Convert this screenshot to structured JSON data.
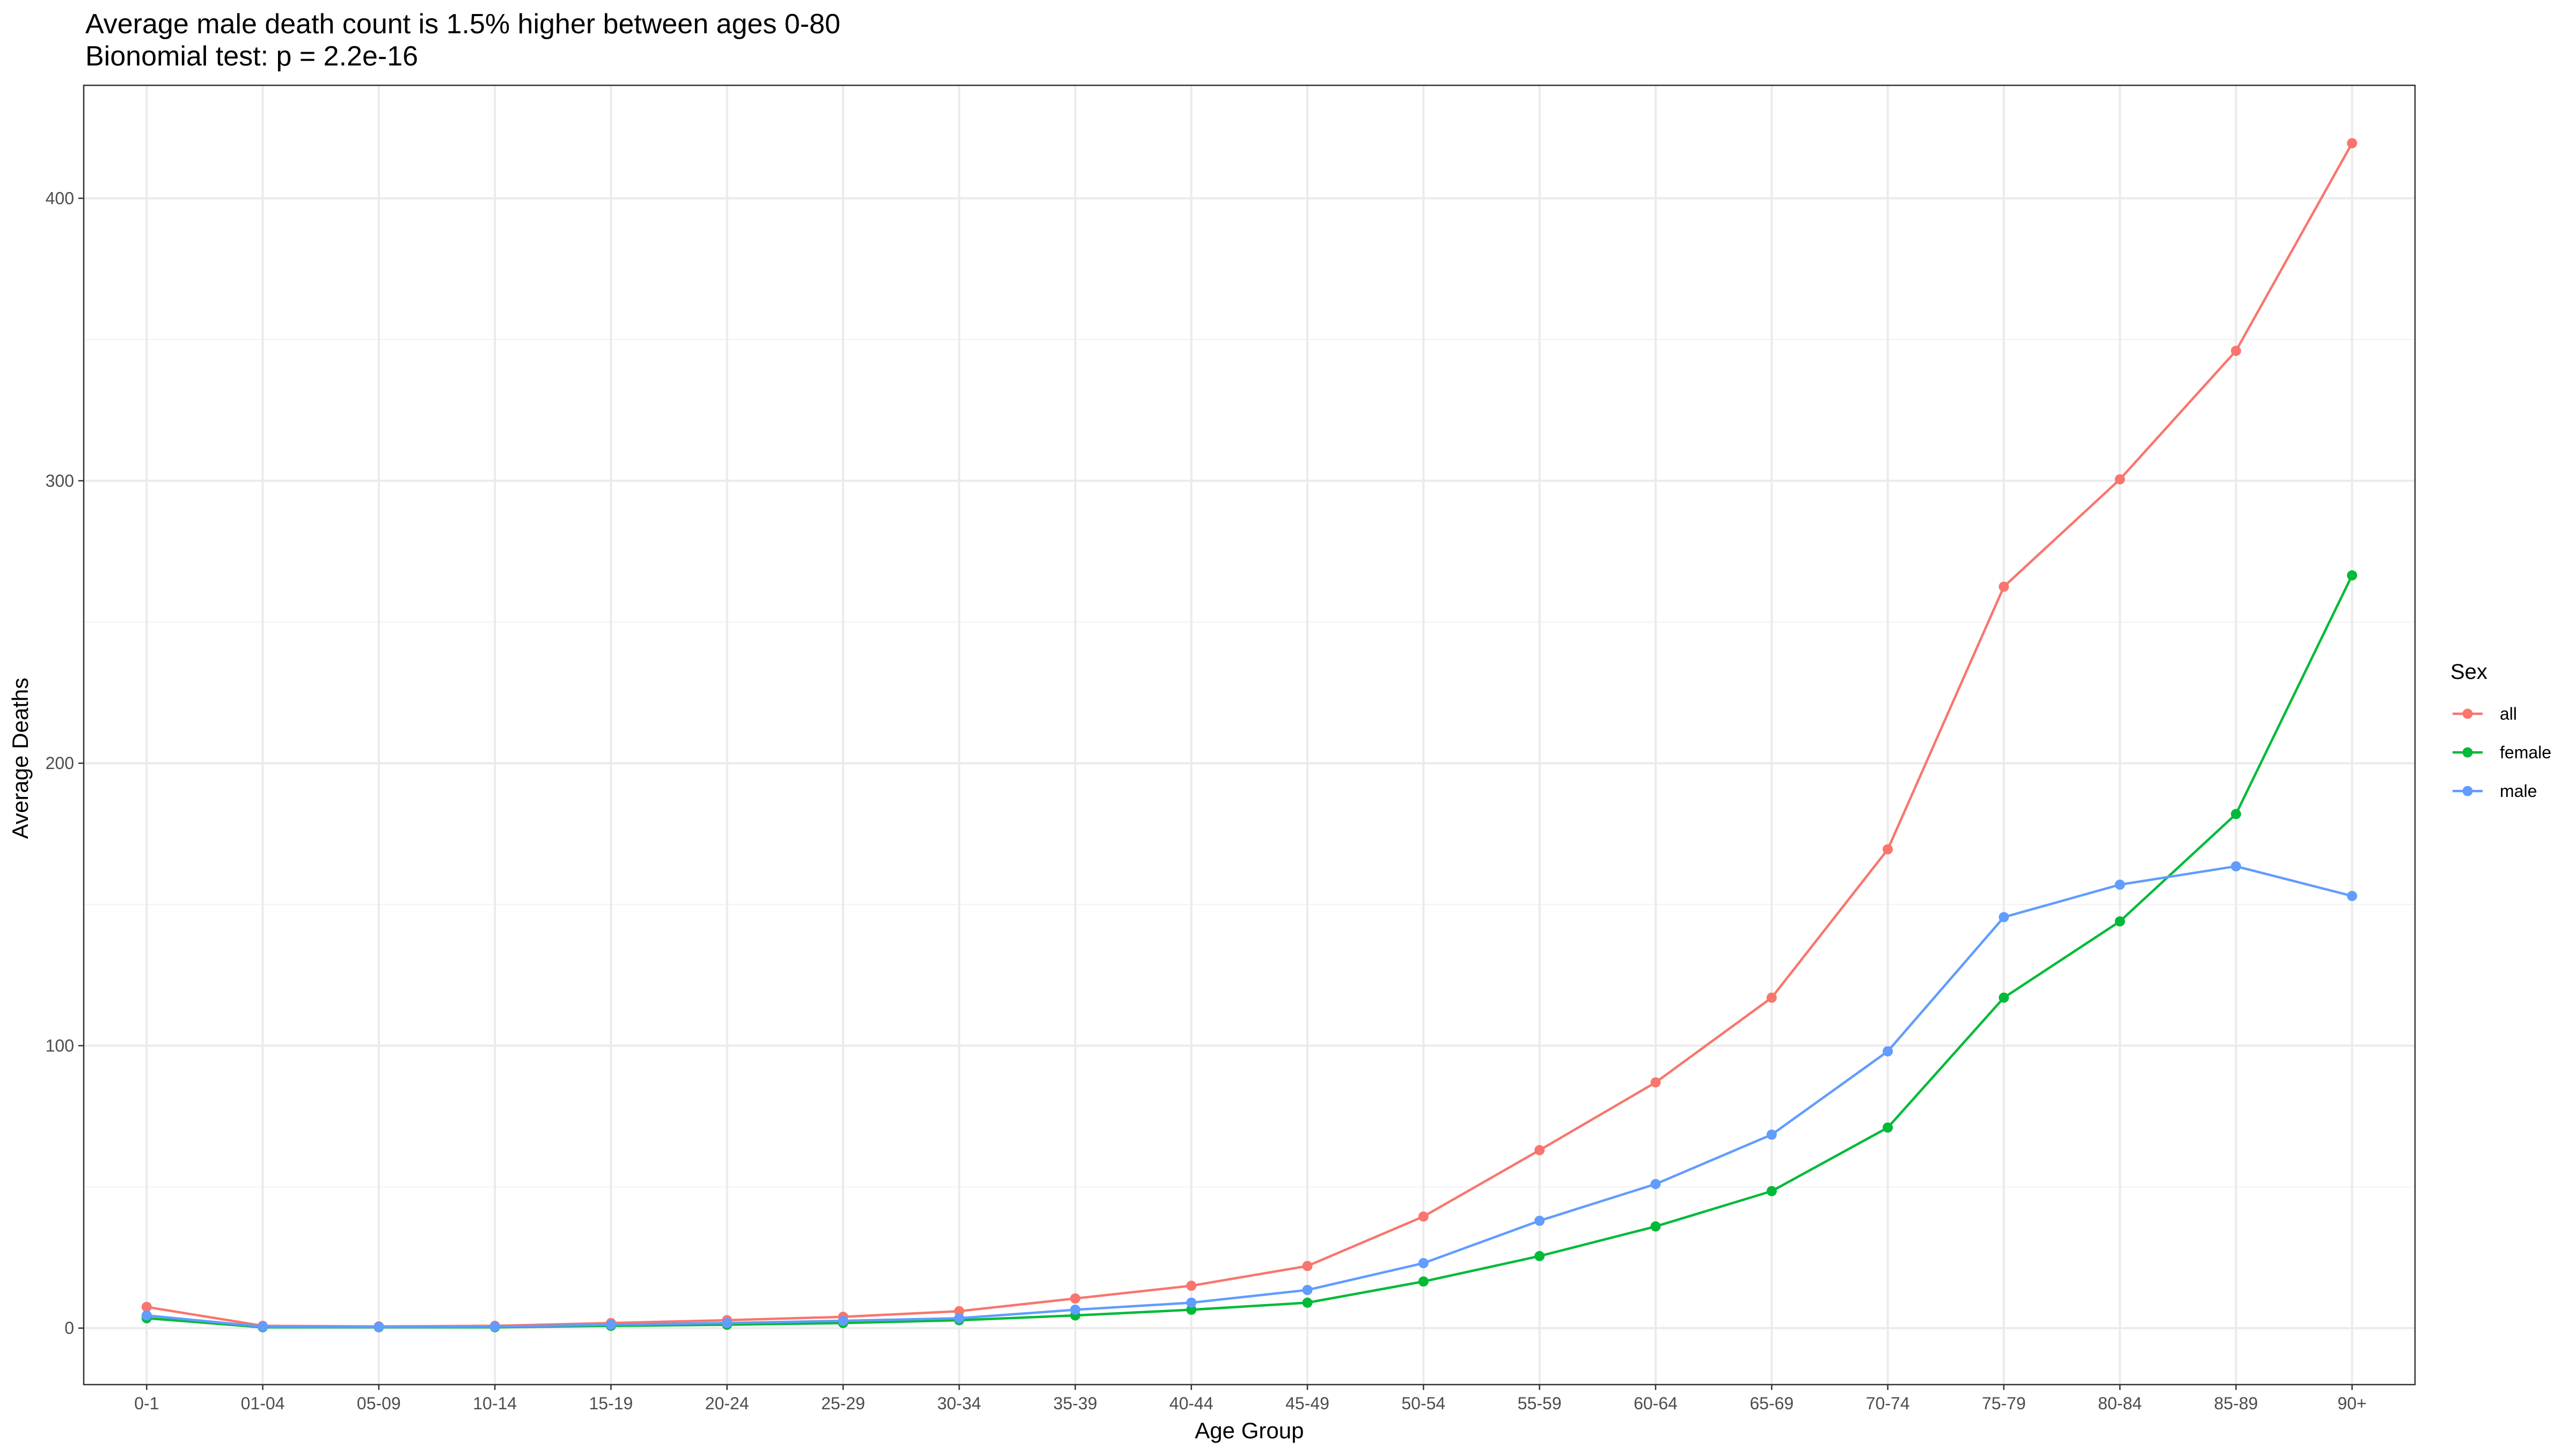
{
  "chart_data": {
    "type": "line",
    "title": "Average male death count is 1.5% higher between ages 0-80",
    "subtitle": "Bionomial test: p = 2.2e-16",
    "xlabel": "Age Group",
    "ylabel": "Average Deaths",
    "categories": [
      "0-1",
      "01-04",
      "05-09",
      "10-14",
      "15-19",
      "20-24",
      "25-29",
      "30-34",
      "35-39",
      "40-44",
      "45-49",
      "50-54",
      "55-59",
      "60-64",
      "65-69",
      "70-74",
      "75-79",
      "80-84",
      "85-89",
      "90+"
    ],
    "ylim": [
      -20,
      440
    ],
    "yticks": [
      0,
      100,
      200,
      300,
      400
    ],
    "grid": true,
    "legend": {
      "title": "Sex",
      "placement": "right"
    },
    "series": [
      {
        "name": "all",
        "color": "#F8766D",
        "values": [
          7.5,
          0.8,
          0.6,
          0.8,
          1.8,
          2.8,
          4,
          6,
          10.5,
          15,
          22,
          39.5,
          63,
          87,
          117,
          169.5,
          262.5,
          300.5,
          346,
          419.5
        ]
      },
      {
        "name": "female",
        "color": "#00BA38",
        "values": [
          3.5,
          0.3,
          0.3,
          0.3,
          0.8,
          1.2,
          1.8,
          2.8,
          4.5,
          6.5,
          9,
          16.5,
          25.5,
          36,
          48.5,
          71,
          117,
          144,
          182,
          266.5
        ]
      },
      {
        "name": "male",
        "color": "#619CFF",
        "values": [
          4.5,
          0.5,
          0.4,
          0.5,
          1.2,
          1.8,
          2.6,
          3.5,
          6.5,
          9,
          13.5,
          23,
          38,
          51,
          68.5,
          98,
          145.5,
          157,
          163.5,
          153
        ]
      }
    ]
  }
}
